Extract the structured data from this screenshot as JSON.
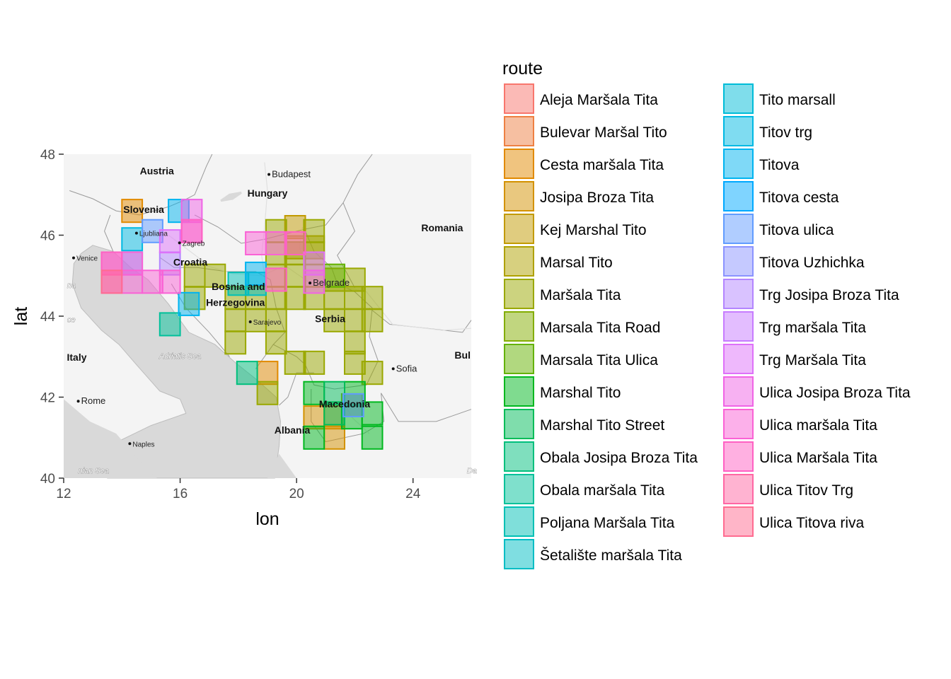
{
  "chart_data": {
    "type": "heatmap",
    "xlabel": "lon",
    "ylabel": "lat",
    "xlim": [
      12,
      26
    ],
    "ylim": [
      40,
      48
    ],
    "x_ticks": [
      12,
      16,
      20,
      24
    ],
    "y_ticks": [
      40,
      42,
      44,
      46,
      48
    ],
    "cell_size": [
      0.7,
      0.56
    ],
    "legend": {
      "title": "route",
      "position": "right"
    },
    "basemap": {
      "countries": [
        {
          "name": "Austria",
          "lon": 15.2,
          "lat": 47.5
        },
        {
          "name": "Hungary",
          "lon": 19.0,
          "lat": 46.95
        },
        {
          "name": "Romania",
          "lon": 25.0,
          "lat": 46.1
        },
        {
          "name": "Slovenia",
          "lon": 14.75,
          "lat": 46.55
        },
        {
          "name": "Croatia",
          "lon": 16.35,
          "lat": 45.25
        },
        {
          "name": "Bosnia and",
          "lon": 18.0,
          "lat": 44.65
        },
        {
          "name": "Herzegovina",
          "lon": 17.9,
          "lat": 44.25
        },
        {
          "name": "Serbia",
          "lon": 21.15,
          "lat": 43.85
        },
        {
          "name": "Italy",
          "lon": 12.45,
          "lat": 42.9
        },
        {
          "name": "Albania",
          "lon": 19.85,
          "lat": 41.1
        },
        {
          "name": "Macedonia",
          "lon": 21.65,
          "lat": 41.75
        },
        {
          "name": "Bul",
          "lon": 25.7,
          "lat": 42.95
        }
      ],
      "cities": [
        {
          "name": "Budapest",
          "lon": 19.05,
          "lat": 47.5
        },
        {
          "name": "Ljubliana",
          "lon": 14.5,
          "lat": 46.05
        },
        {
          "name": "Zagreb",
          "lon": 15.98,
          "lat": 45.81
        },
        {
          "name": "Venice",
          "lon": 12.34,
          "lat": 45.44
        },
        {
          "name": "Belgrade",
          "lon": 20.46,
          "lat": 44.82
        },
        {
          "name": "Sarajevo",
          "lon": 18.41,
          "lat": 43.86
        },
        {
          "name": "Sofia",
          "lon": 23.32,
          "lat": 42.7
        },
        {
          "name": "Rome",
          "lon": 12.5,
          "lat": 41.9
        },
        {
          "name": "Naples",
          "lon": 14.27,
          "lat": 40.85
        }
      ],
      "seas": [
        {
          "name": "Adriatic Sea",
          "lon": 16.0,
          "lat": 42.95
        },
        {
          "name": "nian Sea",
          "lon": 12.5,
          "lat": 40.12
        },
        {
          "name": "na",
          "lon": 12.12,
          "lat": 44.7
        },
        {
          "name": "ce",
          "lon": 12.12,
          "lat": 43.85
        },
        {
          "name": "Da",
          "lon": 25.85,
          "lat": 40.12
        }
      ]
    },
    "series": [
      {
        "name": "Aleja Maršala Tita",
        "color": "#F8766D",
        "cells": []
      },
      {
        "name": "Bulevar Maršal Tito",
        "color": "#EE8043",
        "cells": []
      },
      {
        "name": "Cesta maršala Tita",
        "color": "#E18A00",
        "cells": [
          [
            14.35,
            46.6
          ],
          [
            19.0,
            42.6
          ]
        ]
      },
      {
        "name": "Josipa Broza Tita",
        "color": "#D39200",
        "cells": [
          [
            20.6,
            41.5
          ],
          [
            21.3,
            41.5
          ],
          [
            21.3,
            41.0
          ]
        ]
      },
      {
        "name": "Kej Marshal Tito",
        "color": "#C29A00",
        "cells": [
          [
            19.95,
            46.2
          ]
        ]
      },
      {
        "name": "Marsal Tito",
        "color": "#AFA100",
        "cells": [
          [
            19.95,
            45.7
          ],
          [
            20.6,
            45.7
          ]
        ]
      },
      {
        "name": "Maršala Tita",
        "color": "#9AA800",
        "cells": [
          [
            17.2,
            45.0
          ],
          [
            16.5,
            45.0
          ],
          [
            16.5,
            44.45
          ],
          [
            17.9,
            44.45
          ],
          [
            18.6,
            44.45
          ],
          [
            19.3,
            44.45
          ],
          [
            19.95,
            44.45
          ],
          [
            20.6,
            44.45
          ],
          [
            21.3,
            44.45
          ],
          [
            22.0,
            44.45
          ],
          [
            22.6,
            44.45
          ],
          [
            17.9,
            43.9
          ],
          [
            18.6,
            43.9
          ],
          [
            19.3,
            43.9
          ],
          [
            21.3,
            43.9
          ],
          [
            22.0,
            43.9
          ],
          [
            22.6,
            43.9
          ],
          [
            17.9,
            43.35
          ],
          [
            19.3,
            43.35
          ],
          [
            22.0,
            43.35
          ],
          [
            19.95,
            42.85
          ],
          [
            20.6,
            42.85
          ],
          [
            22.0,
            42.85
          ],
          [
            22.6,
            42.6
          ],
          [
            19.0,
            42.1
          ],
          [
            19.3,
            45.0
          ],
          [
            19.95,
            45.0
          ],
          [
            20.6,
            45.0
          ],
          [
            19.3,
            45.55
          ],
          [
            19.95,
            45.55
          ],
          [
            20.6,
            45.55
          ],
          [
            19.3,
            46.1
          ],
          [
            20.6,
            46.1
          ],
          [
            21.3,
            44.9
          ],
          [
            22.0,
            44.9
          ],
          [
            21.9,
            41.8
          ]
        ]
      },
      {
        "name": "Marsala Tita Road",
        "color": "#83AD00",
        "cells": []
      },
      {
        "name": "Marsala Tita Ulica",
        "color": "#64B200",
        "cells": [
          [
            21.3,
            45.0
          ]
        ]
      },
      {
        "name": "Marshal Tito",
        "color": "#00B81F",
        "cells": [
          [
            20.6,
            42.1
          ],
          [
            22.0,
            42.1
          ],
          [
            22.6,
            41.6
          ],
          [
            21.9,
            41.5
          ],
          [
            20.6,
            41.0
          ],
          [
            22.6,
            41.0
          ]
        ]
      },
      {
        "name": "Marshal Tito Street",
        "color": "#00BC59",
        "cells": [
          [
            21.3,
            42.1
          ],
          [
            21.3,
            41.6
          ]
        ]
      },
      {
        "name": "Obala Josipa Broza Tita",
        "color": "#00BF7D",
        "cells": [
          [
            18.3,
            42.6
          ]
        ]
      },
      {
        "name": "Obala maršala Tita",
        "color": "#00C19A",
        "cells": [
          [
            15.65,
            43.8
          ]
        ]
      },
      {
        "name": "Poljana Maršala Tita",
        "color": "#00C0B5",
        "cells": [
          [
            18.0,
            44.8
          ]
        ]
      },
      {
        "name": "Šetalište maršala Tita",
        "color": "#00BDC4",
        "cells": [
          [
            18.6,
            44.8
          ]
        ]
      },
      {
        "name": "Tito marsall",
        "color": "#00BCD8",
        "cells": []
      },
      {
        "name": "Titov trg",
        "color": "#00B9E3",
        "cells": [
          [
            14.35,
            45.9
          ]
        ]
      },
      {
        "name": "Titova",
        "color": "#00B4F0",
        "cells": [
          [
            15.95,
            46.6
          ],
          [
            18.6,
            45.05
          ],
          [
            16.3,
            44.3
          ]
        ]
      },
      {
        "name": "Titova cesta",
        "color": "#00A9FF",
        "cells": []
      },
      {
        "name": "Titova ulica",
        "color": "#619CFF",
        "cells": [
          [
            15.05,
            46.1
          ],
          [
            14.35,
            45.3
          ],
          [
            21.95,
            41.8
          ]
        ]
      },
      {
        "name": "Titova Uzhichka",
        "color": "#8B93FF",
        "cells": []
      },
      {
        "name": "Trg Josipa Broza Tita",
        "color": "#B385FF",
        "cells": [
          [
            15.65,
            45.3
          ]
        ]
      },
      {
        "name": "Trg maršala Tita",
        "color": "#C77CFF",
        "cells": []
      },
      {
        "name": "Trg Maršala Tita",
        "color": "#DE71F9",
        "cells": [
          [
            15.65,
            45.85
          ],
          [
            20.6,
            45.3
          ]
        ]
      },
      {
        "name": "Ulica Josipa Broza Tita",
        "color": "#F064E5",
        "cells": [
          [
            16.4,
            46.6
          ],
          [
            16.4,
            46.1
          ],
          [
            20.6,
            44.85
          ]
        ]
      },
      {
        "name": "Ulica maršala Tita",
        "color": "#FA62D5",
        "cells": [
          [
            13.65,
            45.3
          ],
          [
            14.35,
            45.3
          ],
          [
            13.65,
            44.85
          ],
          [
            14.35,
            44.85
          ],
          [
            15.05,
            44.85
          ],
          [
            15.65,
            44.85
          ],
          [
            18.6,
            45.8
          ],
          [
            19.3,
            45.8
          ]
        ]
      },
      {
        "name": "Ulica Maršala Tita",
        "color": "#FF61C3",
        "cells": [
          [
            19.3,
            44.9
          ],
          [
            19.95,
            45.8
          ],
          [
            13.65,
            45.3
          ],
          [
            16.4,
            46.1
          ]
        ]
      },
      {
        "name": "Ulica Titov Trg",
        "color": "#FF67A4",
        "cells": []
      },
      {
        "name": "Ulica Titova riva",
        "color": "#FF6C91",
        "cells": [
          [
            13.65,
            44.85
          ]
        ]
      }
    ]
  }
}
